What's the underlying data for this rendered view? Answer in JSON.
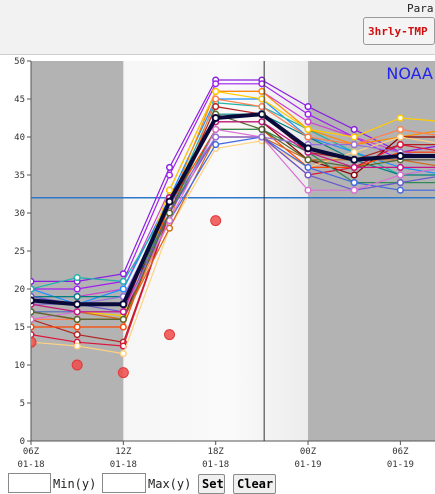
{
  "header": {
    "param_label": "Para",
    "param_button": "3hrly-TMP"
  },
  "controls": {
    "min_label": "Min(y)",
    "max_label": "Max(y)",
    "set_label": "Set",
    "clear_label": "Clear",
    "min_value": "",
    "max_value": ""
  },
  "colors": {
    "plot_bg": "#e5e5e5",
    "shade": "#b3b3b3",
    "mean": "#0a0a3a",
    "threshold": "#2d78c8",
    "observed": "#f04b4b",
    "cursor": "#333333",
    "watermark": "#2222ee"
  },
  "chart_data": {
    "type": "line",
    "watermark": "NOAA",
    "ylim": [
      0,
      50
    ],
    "yticks": [
      0,
      5,
      10,
      15,
      20,
      25,
      30,
      35,
      40,
      45,
      50
    ],
    "xticks": [
      {
        "x": 0,
        "line1": "06Z",
        "line2": "01-18"
      },
      {
        "x": 2,
        "line1": "12Z",
        "line2": "01-18"
      },
      {
        "x": 4,
        "line1": "18Z",
        "line2": "01-18"
      },
      {
        "x": 6,
        "line1": "00Z",
        "line2": "01-19"
      },
      {
        "x": 8,
        "line1": "06Z",
        "line2": "01-19"
      }
    ],
    "x_points": [
      0,
      1,
      2,
      3,
      4,
      5,
      6,
      7,
      8,
      9
    ],
    "xlim": [
      0,
      8.75
    ],
    "night_periods": [
      [
        0,
        2
      ],
      [
        6,
        8.75
      ]
    ],
    "threshold": 32,
    "cursor_x": 5.05,
    "members": [
      {
        "color": "#8a1ee0",
        "values": [
          21,
          21,
          22,
          36,
          47.5,
          47.5,
          44,
          41,
          38,
          39
        ]
      },
      {
        "color": "#a020f0",
        "values": [
          20,
          20,
          21,
          35,
          47,
          47,
          43,
          40,
          37,
          37
        ]
      },
      {
        "color": "#cc44cc",
        "values": [
          19,
          19,
          20,
          33,
          46,
          46,
          42,
          40,
          38,
          38
        ]
      },
      {
        "color": "#1e90ff",
        "values": [
          20,
          18,
          20,
          32,
          45,
          45,
          40,
          38,
          36,
          35
        ]
      },
      {
        "color": "#20b2aa",
        "values": [
          20,
          21.5,
          21,
          31,
          44.5,
          44,
          41,
          38,
          35,
          36
        ]
      },
      {
        "color": "#008080",
        "values": [
          19,
          19,
          19,
          30,
          43,
          43,
          40,
          37,
          35,
          35
        ]
      },
      {
        "color": "#ff8c00",
        "values": [
          17,
          16,
          16,
          31,
          46,
          46,
          41,
          39,
          40,
          41
        ]
      },
      {
        "color": "#ffcc00",
        "values": [
          17,
          17,
          16.5,
          33,
          46,
          45,
          41,
          40,
          42.5,
          42
        ]
      },
      {
        "color": "#ff7f50",
        "values": [
          16,
          16,
          16,
          29,
          45,
          44,
          40,
          39,
          41,
          40
        ]
      },
      {
        "color": "#b22222",
        "values": [
          16,
          14,
          13,
          30,
          44,
          43,
          38,
          37,
          39,
          39
        ]
      },
      {
        "color": "#8b0000",
        "values": [
          17,
          16,
          16,
          32,
          42,
          42,
          37,
          35,
          40,
          40
        ]
      },
      {
        "color": "#ff4500",
        "values": [
          15,
          15,
          15,
          31,
          41,
          41,
          36,
          36,
          38,
          38
        ]
      },
      {
        "color": "#dc143c",
        "values": [
          14,
          13,
          12.5,
          30,
          40,
          40,
          35,
          36,
          39,
          38
        ]
      },
      {
        "color": "#ffd27f",
        "values": [
          13,
          12.5,
          11.5,
          28,
          38.5,
          39.5,
          36,
          38,
          40,
          39
        ]
      },
      {
        "color": "#d2691e",
        "values": [
          18,
          17,
          16,
          28,
          40,
          40,
          37,
          37,
          37,
          36
        ]
      },
      {
        "color": "#2e8b57",
        "values": [
          18,
          18,
          18,
          30,
          41,
          41,
          38,
          34,
          34,
          34
        ]
      },
      {
        "color": "#4169e1",
        "values": [
          17,
          17,
          17,
          29,
          39,
          40,
          36,
          34,
          33,
          33
        ]
      },
      {
        "color": "#6a5acd",
        "values": [
          19,
          18,
          17,
          30,
          40,
          40,
          35,
          33,
          34,
          35
        ]
      },
      {
        "color": "#da70d6",
        "values": [
          16,
          17,
          17,
          29,
          41,
          40,
          33,
          33,
          35,
          36
        ]
      },
      {
        "color": "#9370db",
        "values": [
          18,
          18,
          19,
          31,
          40,
          40,
          39,
          39,
          38,
          37
        ]
      },
      {
        "color": "#556b2f",
        "values": [
          17,
          16,
          16,
          30,
          43,
          41,
          37,
          36,
          37,
          37
        ]
      },
      {
        "color": "#c71585",
        "values": [
          18,
          17,
          17,
          32,
          42,
          42,
          38,
          36,
          36,
          36
        ]
      }
    ],
    "mean_values": [
      18.5,
      18,
      18,
      31.5,
      42.5,
      43,
      38.5,
      37,
      37.5,
      37.5
    ],
    "observed": [
      {
        "x": 0,
        "y": 13
      },
      {
        "x": 1,
        "y": 10
      },
      {
        "x": 2,
        "y": 9
      },
      {
        "x": 3,
        "y": 14
      },
      {
        "x": 4,
        "y": 29
      }
    ]
  }
}
